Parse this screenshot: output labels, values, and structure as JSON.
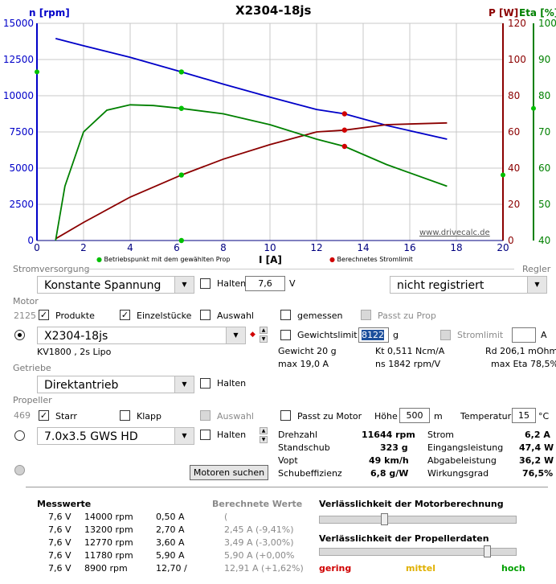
{
  "chart": {
    "title": "X2304-18js",
    "left_label": "n [rpm]",
    "right_label_p": "P [W]",
    "right_label_eta": "Eta [%]",
    "xlabel": "I [A]",
    "watermark": "www.drivecalc.de",
    "legend_op": "Betriebspunkt mit dem gewählten Prop",
    "legend_limit": "Berechnetes Stromlimit",
    "left_ticks": [
      "15000",
      "12500",
      "10000",
      "7500",
      "5000",
      "2500",
      "0"
    ],
    "p_ticks": [
      "120",
      "100",
      "80",
      "60",
      "40",
      "20",
      "0"
    ],
    "eta_ticks": [
      "100",
      "90",
      "80",
      "70",
      "60",
      "50",
      "40"
    ],
    "x_ticks": [
      "0",
      "2",
      "4",
      "6",
      "8",
      "10",
      "12",
      "14",
      "16",
      "18",
      "20"
    ],
    "colors": {
      "rpm": "#0000c8",
      "power": "#8b0000",
      "eta": "#008000",
      "grid": "#c8c8c8"
    }
  },
  "chart_data": {
    "type": "line",
    "xlabel": "I [A]",
    "xlim": [
      0,
      20
    ],
    "series": [
      {
        "name": "n [rpm]",
        "axis": "left",
        "ylim": [
          0,
          15000
        ],
        "x": [
          0.8,
          2,
          4,
          6.2,
          8,
          10,
          12,
          13.2,
          15,
          17.6
        ],
        "y": [
          13950,
          13450,
          12650,
          11644,
          10800,
          9900,
          9050,
          8750,
          7950,
          7000
        ]
      },
      {
        "name": "P [W]",
        "axis": "right",
        "ylim": [
          0,
          120
        ],
        "x": [
          0.8,
          2,
          4,
          6.2,
          8,
          10,
          12,
          13.2,
          15,
          17.6
        ],
        "y": [
          1,
          10,
          24,
          36.2,
          45,
          53,
          60,
          61,
          64,
          65
        ]
      },
      {
        "name": "Eta [%]",
        "axis": "right2",
        "ylim": [
          40,
          100
        ],
        "x": [
          0.8,
          1.2,
          2,
          3,
          4,
          5,
          6.2,
          8,
          10,
          12,
          13.2,
          15,
          17.6
        ],
        "y": [
          40,
          55,
          70,
          76,
          77.5,
          77.3,
          76.5,
          75,
          72,
          68,
          66,
          61,
          55
        ]
      }
    ],
    "operating_point_current": 6.2,
    "current_limit": 13.2
  },
  "power": {
    "section": "Stromversorgung",
    "supply": "Konstante Spannung",
    "halten": "Halten",
    "voltage": "7,6",
    "volt_unit": "V",
    "regler_section": "Regler",
    "regler": "nicht registriert"
  },
  "motor": {
    "section": "Motor",
    "count": "2125",
    "produkte": "Produkte",
    "einzelstuecke": "Einzelstücke",
    "auswahl": "Auswahl",
    "gemessen": "gemessen",
    "passt_zu_prop": "Passt zu Prop",
    "name": "X2304-18js",
    "kv": "KV1800 , 2s Lipo",
    "gewichtslimit": "Gewichtslimit",
    "weight_limit": "8122",
    "g_unit": "g",
    "stromlimit": "Stromlimit",
    "a_unit": "A",
    "gewicht": "Gewicht 20 g",
    "kt": "Kt 0,511 Ncm/A",
    "rd": "Rd 206,1 mOhm",
    "max_a": "max 19,0 A",
    "ns": "ns 1842 rpm/V",
    "max_eta": "max Eta 78,5%"
  },
  "gear": {
    "section": "Getriebe",
    "value": "Direktantrieb",
    "halten": "Halten"
  },
  "prop": {
    "section": "Propeller",
    "count": "469",
    "starr": "Starr",
    "klapp": "Klapp",
    "auswahl": "Auswahl",
    "passt_zu_motor": "Passt zu Motor",
    "hoehe": "Höhe",
    "hoehe_val": "500",
    "m_unit": "m",
    "temperatur": "Temperatur",
    "temp_val": "15",
    "c_unit": "°C",
    "value": "7.0x3.5 GWS HD",
    "halten": "Halten",
    "search_button": "Motoren suchen"
  },
  "results": {
    "drehzahl_l": "Drehzahl",
    "drehzahl_v": "11644 rpm",
    "standschub_l": "Standschub",
    "standschub_v": "323 g",
    "vopt_l": "Vopt",
    "vopt_v": "49 km/h",
    "schubeff_l": "Schubeffizienz",
    "schubeff_v": "6,8 g/W",
    "strom_l": "Strom",
    "strom_v": "6,2 A",
    "eingang_l": "Eingangsleistung",
    "eingang_v": "47,4 W",
    "abgabe_l": "Abgabeleistung",
    "abgabe_v": "36,2 W",
    "wirkung_l": "Wirkungsgrad",
    "wirkung_v": "76,5%"
  },
  "measured": {
    "header": "Messwerte",
    "calc_header": "Berechnete Werte",
    "rows": [
      {
        "v": "7,6 V",
        "rpm": "14000 rpm",
        "a": "0,50 A",
        "calc": "("
      },
      {
        "v": "7,6 V",
        "rpm": "13200 rpm",
        "a": "2,70 A",
        "calc": "2,45 A (-9,41%)"
      },
      {
        "v": "7,6 V",
        "rpm": "12770 rpm",
        "a": "3,60 A",
        "calc": "3,49 A (-3,00%)"
      },
      {
        "v": "7,6 V",
        "rpm": "11780 rpm",
        "a": "5,90 A",
        "calc": "5,90 A (+0,00%"
      },
      {
        "v": "7,6 V",
        "rpm": "8900 rpm",
        "a": "12,70 /",
        "calc": "12,91 A (+1,62%)"
      }
    ]
  },
  "reliability": {
    "motor_title": "Verlässlichkeit der Motorberechnung",
    "motor_level": 0.33,
    "prop_title": "Verlässlichkeit der Propellerdaten",
    "prop_level": 0.85,
    "low": "gering",
    "mid": "mittel",
    "high": "hoch"
  }
}
